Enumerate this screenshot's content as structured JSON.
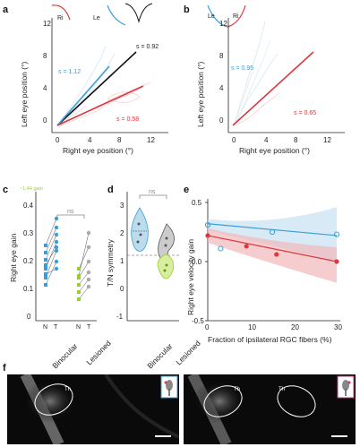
{
  "panels": {
    "a": "a",
    "b": "b",
    "c": "c",
    "d": "d",
    "e": "e",
    "f": "f"
  },
  "panel_a": {
    "inset_left": "Ri",
    "inset_right": "Le",
    "ylabel": "Left eye position (°)",
    "xlabel": "Right eye position (°)",
    "yticks": [
      "0",
      "4",
      "8",
      "12"
    ],
    "xticks": [
      "0",
      "4",
      "8",
      "12"
    ],
    "slope_black": "s = 0.92",
    "slope_blue": "s = 1.12",
    "slope_red": "s = 0.58"
  },
  "panel_b": {
    "inset_left": "Le",
    "inset_right": "Ri",
    "ylabel": "Left eye position (°)",
    "xlabel": "Right eye position (°)",
    "yticks": [
      "0",
      "4",
      "8",
      "12"
    ],
    "xticks": [
      "0",
      "4",
      "8",
      "12"
    ],
    "slope_blue": "s = 0.95",
    "slope_red": "s = 0.65"
  },
  "panel_c": {
    "legend": "~1.44 gain",
    "ylabel": "Right eye gain",
    "yticks": [
      "0.4",
      "0.3",
      "0.2",
      "0.1",
      "0"
    ],
    "ns": "ns",
    "nt": [
      "N",
      "T",
      "N",
      "T"
    ],
    "groups": [
      "Binocular",
      "Lesioned"
    ]
  },
  "panel_d": {
    "ylabel": "T/N symmetry",
    "yticks": [
      "3",
      "2",
      "1",
      "0",
      "-1"
    ],
    "ns": "ns",
    "groups": [
      "Binocular",
      "Lesioned"
    ]
  },
  "panel_e": {
    "ylabel": "Right eye velocity gain",
    "xlabel": "Fraction of ipsilateral RGC fibers (%)",
    "yticks": [
      "0.5",
      "0.0",
      "-0.5"
    ],
    "xticks": [
      "0",
      "10",
      "20",
      "30"
    ]
  },
  "panel_f": {
    "label_left": "Th",
    "label_right_1": "Th",
    "label_right_2": "Th"
  },
  "colors": {
    "blue": "#3a9fd8",
    "red": "#d9393f",
    "green": "#9acd32",
    "black": "#111111",
    "light_blue": "#bcdcee",
    "light_red": "#f2b8ba",
    "gray": "#888888"
  },
  "chart_data": [
    {
      "type": "line",
      "panel": "e",
      "ylabel": "Right eye velocity gain",
      "xlabel": "Fraction of ipsilateral RGC fibers (%)",
      "xlim": [
        0,
        30
      ],
      "ylim": [
        -0.5,
        0.5
      ],
      "series": [
        {
          "color": "blue",
          "points": [
            [
              0,
              0.31
            ],
            [
              3,
              0.11
            ],
            [
              15,
              0.25
            ],
            [
              30,
              0.23
            ]
          ],
          "fit": [
            [
              0,
              0.32
            ],
            [
              30,
              0.22
            ]
          ]
        },
        {
          "color": "red",
          "points": [
            [
              0,
              0.22
            ],
            [
              9,
              0.13
            ],
            [
              16,
              0.06
            ],
            [
              30,
              0.0
            ]
          ],
          "fit": [
            [
              0,
              0.22
            ],
            [
              30,
              0.0
            ]
          ]
        }
      ]
    }
  ]
}
